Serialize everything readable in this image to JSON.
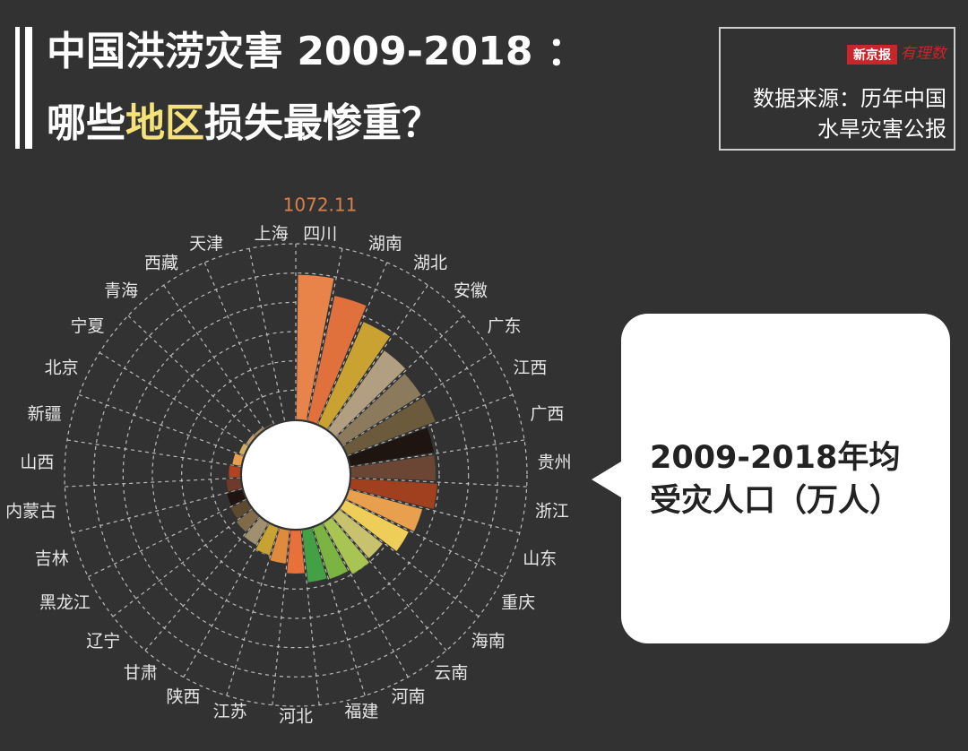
{
  "chart_data": {
    "type": "radial-bar",
    "title": "中国洪涝灾害 2009-2018 ：",
    "subtitle_parts": [
      "哪些",
      "地区",
      "损失最惨重？"
    ],
    "logo": [
      "新京报",
      "有理数"
    ],
    "source_lines": [
      "数据来源：历年中国",
      "水旱灾害公报"
    ],
    "callout_lines": [
      "2009-2018年均",
      "受灾人口（万人）"
    ],
    "categories": [
      "四川",
      "湖南",
      "湖北",
      "安徽",
      "广东",
      "江西",
      "广西",
      "贵州",
      "浙江",
      "山东",
      "重庆",
      "海南",
      "云南",
      "河南",
      "福建",
      "河北",
      "江苏",
      "陕西",
      "甘肃",
      "辽宁",
      "黑龙江",
      "吉林",
      "内蒙古",
      "山西",
      "新疆",
      "北京",
      "宁夏",
      "青海",
      "西藏",
      "天津",
      "上海"
    ],
    "values": [
      1072.11,
      947,
      829,
      720,
      690,
      697,
      625,
      625,
      640,
      560,
      525,
      410,
      435,
      400,
      390,
      320,
      250,
      215,
      185,
      150,
      130,
      118,
      105,
      86,
      66,
      40,
      26,
      20,
      8,
      4,
      2
    ],
    "colors": [
      "#e8844a",
      "#e0703c",
      "#c9a232",
      "#b29f82",
      "#8c7a5c",
      "#6b5a3c",
      "#1e1410",
      "#6b4634",
      "#a0401e",
      "#e8a04e",
      "#eecd58",
      "#c8c26e",
      "#a8c452",
      "#7cb444",
      "#44a044",
      "#e8703a",
      "#e08a3e",
      "#c8a232",
      "#a09070",
      "#806a4a",
      "#5e4a30",
      "#201410",
      "#703a2a",
      "#b04420",
      "#e8a050",
      "#d0b060",
      "#c0a070",
      "#a08a60",
      "#806040",
      "#604030",
      "#402a20"
    ],
    "label_color": "#d9804a",
    "ylim": [
      0,
      1300
    ]
  }
}
